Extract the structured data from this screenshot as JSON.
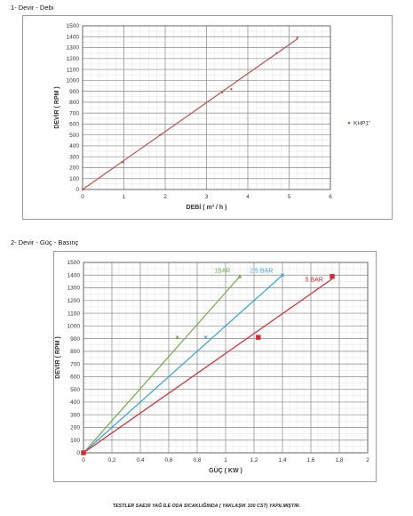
{
  "section1_title": "1- Devir - Debi",
  "section2_title": "2- Devir - Güç - Basınç",
  "footnote": "TESTLER SAE30 YAĞ İLE ODA SICAKLIĞINDA ( YAKLAŞIK 100 CST) YAPILMIŞTIR.",
  "chart_data": [
    {
      "type": "scatter",
      "xlabel": "DEBİ ( m³ / h )",
      "ylabel": "DEVİR ( RPM )",
      "xlim": [
        0,
        6
      ],
      "ylim": [
        0,
        1500
      ],
      "xticks": [
        "0",
        "1",
        "2",
        "3",
        "4",
        "5",
        "6"
      ],
      "yticks": [
        "0",
        "100",
        "200",
        "300",
        "400",
        "500",
        "600",
        "700",
        "800",
        "900",
        "1000",
        "1100",
        "1200",
        "1300",
        "1400",
        "1500"
      ],
      "grid": true,
      "legend": "right",
      "series": [
        {
          "name": "KHP1\"",
          "color": "#c0504d",
          "points": [
            {
              "x": 0,
              "y": 0
            },
            {
              "x": 0.97,
              "y": 250
            },
            {
              "x": 1.88,
              "y": 500
            },
            {
              "x": 3.38,
              "y": 890
            },
            {
              "x": 3.6,
              "y": 920
            },
            {
              "x": 4.7,
              "y": 1250
            },
            {
              "x": 5.2,
              "y": 1390
            }
          ],
          "trendline": [
            {
              "x": 0,
              "y": 0
            },
            {
              "x": 5.2,
              "y": 1380
            }
          ]
        }
      ]
    },
    {
      "type": "scatter",
      "xlabel": "GÜÇ ( KW )",
      "ylabel": "DEVİR ( RPM )",
      "xlim": [
        0,
        2
      ],
      "ylim": [
        0,
        1500
      ],
      "xticks": [
        "0",
        "0,2",
        "0,4",
        "0,6",
        "0,8",
        "1",
        "1,2",
        "1,4",
        "1,6",
        "1,8",
        "2"
      ],
      "yticks": [
        "0",
        "100",
        "200",
        "300",
        "400",
        "500",
        "600",
        "700",
        "800",
        "900",
        "1000",
        "1100",
        "1200",
        "1300",
        "1400",
        "1500"
      ],
      "grid": true,
      "series": [
        {
          "name": "1BAR",
          "color": "#70ad47",
          "marker": "triangle",
          "points": [
            {
              "x": 0,
              "y": 0
            },
            {
              "x": 0.66,
              "y": 910
            },
            {
              "x": 1.1,
              "y": 1390
            }
          ],
          "trendline": [
            {
              "x": 0,
              "y": 0
            },
            {
              "x": 1.1,
              "y": 1390
            }
          ]
        },
        {
          "name": "2,5 BAR",
          "color": "#2ea3d9",
          "marker": "x",
          "points": [
            {
              "x": 0,
              "y": 0
            },
            {
              "x": 0.86,
              "y": 910
            },
            {
              "x": 1.4,
              "y": 1400
            }
          ],
          "trendline": [
            {
              "x": 0,
              "y": 0
            },
            {
              "x": 1.4,
              "y": 1400
            }
          ]
        },
        {
          "name": "5 BAR",
          "color": "#d8282f",
          "marker": "square",
          "points": [
            {
              "x": 0,
              "y": 0
            },
            {
              "x": 1.23,
              "y": 910
            },
            {
              "x": 1.75,
              "y": 1390
            }
          ],
          "trendline": [
            {
              "x": 0,
              "y": 0
            },
            {
              "x": 1.75,
              "y": 1370
            }
          ]
        }
      ]
    }
  ]
}
